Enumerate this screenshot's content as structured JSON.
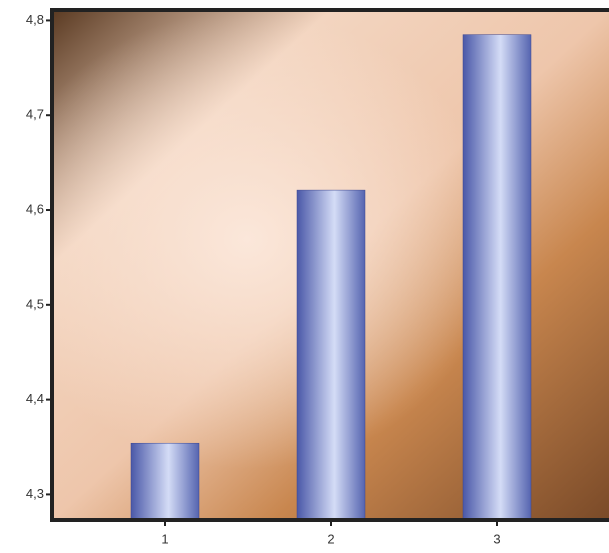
{
  "chart_data": {
    "type": "bar",
    "categories": [
      "1",
      "2",
      "3"
    ],
    "values": [
      4.354,
      4.621,
      4.785
    ],
    "ylim": [
      4.273,
      4.811
    ],
    "yticks": [
      {
        "value": 4.3,
        "label": "4,3"
      },
      {
        "value": 4.4,
        "label": "4,4"
      },
      {
        "value": 4.5,
        "label": "4,5"
      },
      {
        "value": 4.6,
        "label": "4,6"
      },
      {
        "value": 4.7,
        "label": "4,7"
      },
      {
        "value": 4.8,
        "label": "4,8"
      }
    ]
  }
}
